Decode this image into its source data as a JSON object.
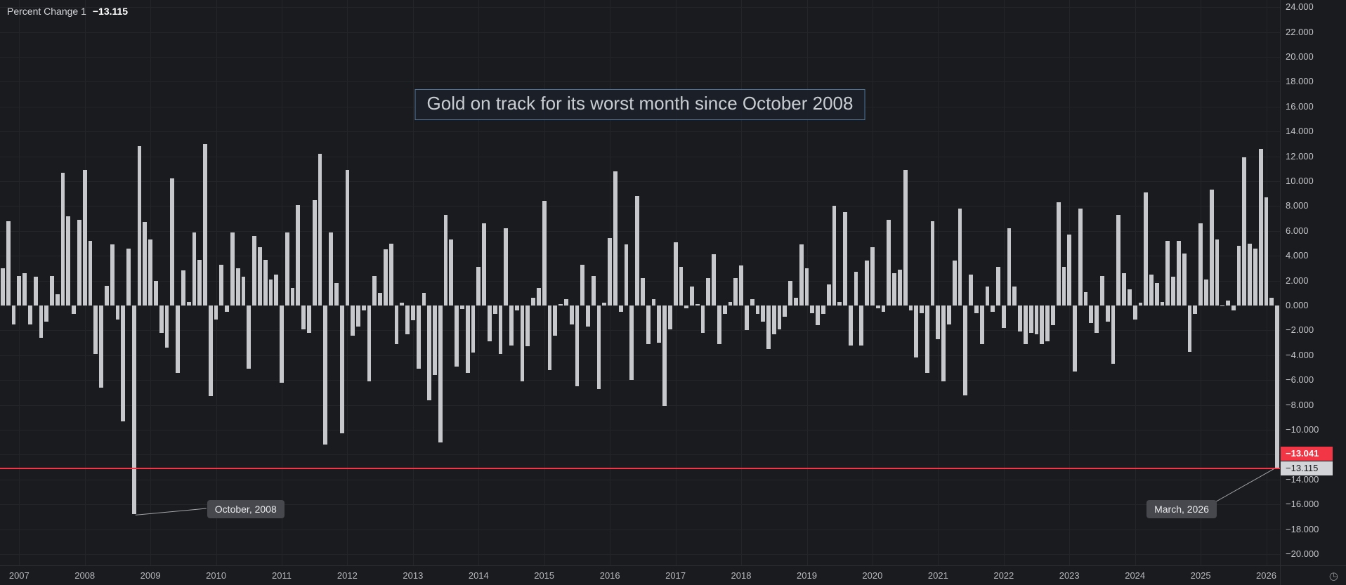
{
  "legend": {
    "label": "Percent Change 1",
    "value": "−13.115"
  },
  "title_annotation": "Gold on track for its worst month since October 2008",
  "axis_badges": {
    "last_value": "−13.041",
    "line_value": "−13.115"
  },
  "icons": {
    "clock": "◷"
  },
  "colors": {
    "background": "#1a1b1e",
    "bars": "#c7c8cb",
    "grid": "#242529",
    "alert_line": "#f23645",
    "red_badge": "#f23645",
    "gray_badge": "#d2d4d7",
    "title_border": "#51759b",
    "axis_text": "#c3c5c9"
  },
  "y_ticks": [
    {
      "value": 24,
      "label": "24.000"
    },
    {
      "value": 22,
      "label": "22.000"
    },
    {
      "value": 20,
      "label": "20.000"
    },
    {
      "value": 18,
      "label": "18.000"
    },
    {
      "value": 16,
      "label": "16.000"
    },
    {
      "value": 14,
      "label": "14.000"
    },
    {
      "value": 12,
      "label": "12.000"
    },
    {
      "value": 10,
      "label": "10.000"
    },
    {
      "value": 8,
      "label": "8.000"
    },
    {
      "value": 6,
      "label": "6.000"
    },
    {
      "value": 4,
      "label": "4.000"
    },
    {
      "value": 2,
      "label": "2.000"
    },
    {
      "value": 0,
      "label": "0.000"
    },
    {
      "value": -2,
      "label": "−2.000"
    },
    {
      "value": -4,
      "label": "−4.000"
    },
    {
      "value": -6,
      "label": "−6.000"
    },
    {
      "value": -8,
      "label": "−8.000"
    },
    {
      "value": -10,
      "label": "−10.000"
    },
    {
      "value": -12,
      "label": "−12.000"
    },
    {
      "value": -14,
      "label": "−14.000"
    },
    {
      "value": -16,
      "label": "−16.000"
    },
    {
      "value": -18,
      "label": "−18.000"
    },
    {
      "value": -20,
      "label": "−20.000"
    }
  ],
  "x_ticks": [
    "2007",
    "2008",
    "2009",
    "2010",
    "2011",
    "2012",
    "2013",
    "2014",
    "2015",
    "2016",
    "2017",
    "2018",
    "2019",
    "2020",
    "2021",
    "2022",
    "2023",
    "2024",
    "2025",
    "2026"
  ],
  "chart_data": {
    "type": "bar",
    "title": "Gold on track for its worst month since October 2008",
    "series_name": "Percent Change 1",
    "xlabel": "",
    "ylabel": "",
    "start": "2006-10",
    "frequency": "monthly",
    "ylim": [
      -20.9,
      24.57
    ],
    "grid": true,
    "red_line_value": -13.115,
    "values": [
      3.0,
      6.8,
      -1.5,
      2.4,
      2.6,
      -1.5,
      2.3,
      -2.6,
      -1.3,
      2.4,
      0.9,
      10.7,
      7.2,
      -0.7,
      6.9,
      10.9,
      5.2,
      -3.9,
      -6.6,
      1.6,
      4.9,
      -1.1,
      -9.3,
      4.6,
      -16.8,
      12.8,
      6.7,
      5.3,
      2.0,
      -2.2,
      -3.4,
      10.2,
      -5.4,
      2.8,
      0.3,
      5.9,
      3.7,
      13.0,
      -7.3,
      -1.1,
      3.3,
      -0.5,
      5.9,
      3.0,
      2.3,
      -5.1,
      5.6,
      4.7,
      3.7,
      2.1,
      2.5,
      -6.2,
      5.9,
      1.4,
      8.1,
      -1.9,
      -2.2,
      8.5,
      12.2,
      -11.2,
      5.9,
      1.8,
      -10.3,
      10.9,
      -2.4,
      -1.7,
      -0.4,
      -6.1,
      2.4,
      1.0,
      4.5,
      5.0,
      -3.1,
      0.2,
      -2.3,
      -1.2,
      -5.1,
      1.0,
      -7.6,
      -5.6,
      -11.0,
      7.3,
      5.3,
      -4.9,
      -0.3,
      -5.4,
      -3.8,
      3.1,
      6.6,
      -2.9,
      -0.7,
      -3.9,
      6.2,
      -3.2,
      -0.4,
      -6.1,
      -3.3,
      0.6,
      1.4,
      8.4,
      -5.2,
      -2.4,
      0.1,
      0.5,
      -1.5,
      -6.5,
      3.3,
      -1.7,
      2.4,
      -6.7,
      0.2,
      5.4,
      10.8,
      -0.5,
      4.9,
      -6.0,
      8.8,
      2.2,
      -3.1,
      0.5,
      -3.0,
      -8.1,
      -1.9,
      5.1,
      3.1,
      -0.2,
      1.5,
      0.1,
      -2.2,
      2.2,
      4.1,
      -3.1,
      -0.7,
      0.3,
      2.2,
      3.2,
      -2.0,
      0.5,
      -0.7,
      -1.3,
      -3.5,
      -2.3,
      -1.9,
      -0.9,
      2.0,
      0.6,
      4.9,
      3.0,
      -0.6,
      -1.6,
      -0.7,
      1.7,
      8.0,
      0.3,
      7.5,
      -3.2,
      2.7,
      -3.2,
      3.6,
      4.7,
      -0.2,
      -0.5,
      6.9,
      2.6,
      2.9,
      10.9,
      -0.4,
      -4.2,
      -0.6,
      -5.4,
      6.8,
      -2.7,
      -6.1,
      -1.5,
      3.6,
      7.8,
      -7.2,
      2.5,
      -0.6,
      -3.1,
      1.5,
      -0.5,
      3.1,
      -1.8,
      6.2,
      1.5,
      -2.1,
      -3.1,
      -2.2,
      -2.3,
      -3.1,
      -2.9,
      -1.6,
      8.3,
      3.1,
      5.7,
      -5.3,
      7.8,
      1.1,
      -1.4,
      -2.2,
      2.4,
      -1.3,
      -4.7,
      7.3,
      2.6,
      1.3,
      -1.1,
      0.2,
      9.1,
      2.5,
      1.8,
      0.3,
      5.2,
      2.3,
      5.2,
      4.2,
      -3.7,
      -0.7,
      6.6,
      2.1,
      9.3,
      5.3,
      0.0,
      0.4,
      -0.4,
      4.8,
      11.9,
      5.0,
      4.6,
      12.6,
      8.7,
      0.6,
      -13.041
    ],
    "annotations": [
      {
        "text": "October, 2008",
        "month": "2008-10",
        "value": -16.8,
        "side": "right"
      },
      {
        "text": "March, 2026",
        "month": "2026-03",
        "value": -13.041,
        "side": "left"
      }
    ]
  }
}
